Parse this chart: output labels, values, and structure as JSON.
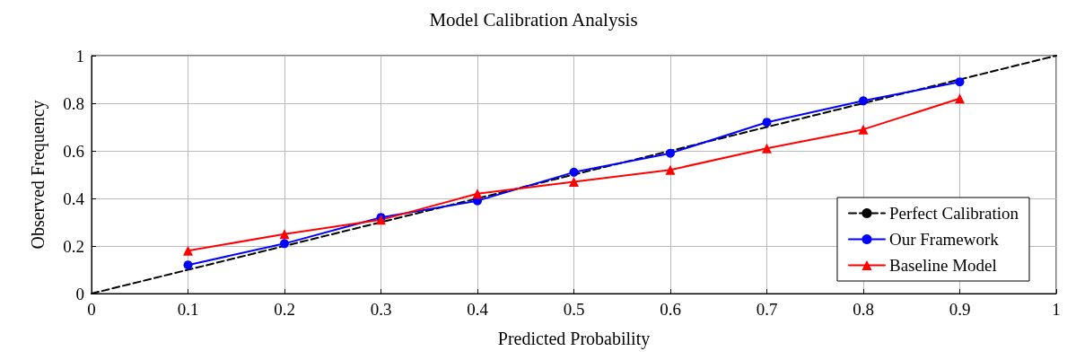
{
  "chart_data": {
    "type": "line",
    "title": "Model Calibration Analysis",
    "xlabel": "Predicted Probability",
    "ylabel": "Observed Frequency",
    "xlim": [
      0,
      1
    ],
    "xticks": [
      0,
      0.1,
      0.2,
      0.3,
      0.4,
      0.5,
      0.6,
      0.7,
      0.8,
      0.9,
      1
    ],
    "ylim": [
      0,
      1
    ],
    "yticks": [
      0,
      0.2,
      0.4,
      0.6,
      0.8,
      1
    ],
    "grid": true,
    "legend": "bottom right",
    "series": [
      {
        "name": "Perfect Calibration",
        "color": "#000000",
        "x": [
          0,
          1
        ],
        "values": [
          0,
          1
        ],
        "marker": "none",
        "line_style": "dashed"
      },
      {
        "name": "Our Framework",
        "color": "#0000ff",
        "x": [
          0.1,
          0.2,
          0.3,
          0.4,
          0.5,
          0.6,
          0.7,
          0.8,
          0.9
        ],
        "values": [
          0.12,
          0.21,
          0.32,
          0.39,
          0.51,
          0.59,
          0.72,
          0.81,
          0.89
        ],
        "marker": "circle",
        "line_style": "solid"
      },
      {
        "name": "Baseline Model",
        "color": "#ff0000",
        "x": [
          0.1,
          0.2,
          0.3,
          0.4,
          0.5,
          0.6,
          0.7,
          0.8,
          0.9
        ],
        "values": [
          0.18,
          0.25,
          0.31,
          0.42,
          0.47,
          0.52,
          0.61,
          0.69,
          0.82
        ],
        "marker": "triangle",
        "line_style": "solid"
      }
    ]
  }
}
